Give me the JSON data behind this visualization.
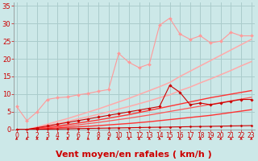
{
  "background_color": "#cce8e8",
  "grid_color": "#aacccc",
  "xlabel": "Vent moyen/en rafales ( km/h )",
  "xlabel_color": "#cc0000",
  "xlabel_fontsize": 8,
  "ylabel_ticks": [
    0,
    5,
    10,
    15,
    20,
    25,
    30,
    35
  ],
  "xticks": [
    0,
    1,
    2,
    3,
    4,
    5,
    6,
    7,
    8,
    9,
    10,
    11,
    12,
    13,
    14,
    15,
    16,
    17,
    18,
    19,
    20,
    21,
    22,
    23
  ],
  "xlim": [
    -0.3,
    23.3
  ],
  "ylim": [
    0,
    36
  ],
  "lines": [
    {
      "x": [
        0,
        1,
        2,
        3,
        4,
        5,
        6,
        7,
        8,
        9,
        10,
        11,
        12,
        13,
        14,
        15,
        16,
        17,
        18,
        19,
        20,
        21,
        22,
        23
      ],
      "y": [
        0.0,
        0.0,
        0.5,
        1.1,
        1.7,
        2.3,
        3.0,
        3.6,
        4.3,
        5.0,
        5.8,
        6.5,
        7.3,
        8.1,
        9.0,
        9.8,
        11.0,
        12.0,
        13.2,
        14.3,
        15.5,
        16.7,
        18.0,
        19.2
      ],
      "color": "#ffaaaa",
      "lw": 1.1,
      "marker": null
    },
    {
      "x": [
        0,
        1,
        2,
        3,
        4,
        5,
        6,
        7,
        8,
        9,
        10,
        11,
        12,
        13,
        14,
        15,
        16,
        17,
        18,
        19,
        20,
        21,
        22,
        23
      ],
      "y": [
        0.0,
        0.0,
        0.7,
        1.5,
        2.3,
        3.1,
        4.0,
        4.9,
        5.8,
        6.8,
        7.8,
        8.8,
        9.9,
        11.0,
        12.1,
        13.3,
        15.0,
        16.5,
        18.0,
        19.5,
        21.0,
        22.5,
        24.0,
        25.5
      ],
      "color": "#ffaaaa",
      "lw": 1.1,
      "marker": null
    },
    {
      "x": [
        0,
        1,
        2,
        3,
        4,
        5,
        6,
        7,
        8,
        9,
        10,
        11,
        12,
        13,
        14,
        15,
        16,
        17,
        18,
        19,
        20,
        21,
        22,
        23
      ],
      "y": [
        6.5,
        2.5,
        5.0,
        8.5,
        9.0,
        9.2,
        9.8,
        10.2,
        10.8,
        11.3,
        21.5,
        19.0,
        17.5,
        18.5,
        29.5,
        31.5,
        27.0,
        25.5,
        26.5,
        24.5,
        25.0,
        27.5,
        26.5,
        26.5
      ],
      "color": "#ff9999",
      "lw": 0.8,
      "marker": "D",
      "ms": 2.0
    },
    {
      "x": [
        0,
        1,
        2,
        3,
        4,
        5,
        6,
        7,
        8,
        9,
        10,
        11,
        12,
        13,
        14,
        15,
        16,
        17,
        18,
        19,
        20,
        21,
        22,
        23
      ],
      "y": [
        0.0,
        0.0,
        0.15,
        0.3,
        0.45,
        0.6,
        0.75,
        0.9,
        1.1,
        1.3,
        1.5,
        1.7,
        1.95,
        2.2,
        2.5,
        2.8,
        3.1,
        3.4,
        3.7,
        4.0,
        4.4,
        4.8,
        5.2,
        5.6
      ],
      "color": "#ff3333",
      "lw": 1.0,
      "marker": null
    },
    {
      "x": [
        0,
        1,
        2,
        3,
        4,
        5,
        6,
        7,
        8,
        9,
        10,
        11,
        12,
        13,
        14,
        15,
        16,
        17,
        18,
        19,
        20,
        21,
        22,
        23
      ],
      "y": [
        0.0,
        0.0,
        0.3,
        0.65,
        1.0,
        1.4,
        1.8,
        2.25,
        2.7,
        3.2,
        3.7,
        4.2,
        4.8,
        5.4,
        6.0,
        6.6,
        7.2,
        7.8,
        8.4,
        9.0,
        9.5,
        10.0,
        10.5,
        11.0
      ],
      "color": "#ff3333",
      "lw": 1.0,
      "marker": null
    },
    {
      "x": [
        0,
        1,
        2,
        3,
        4,
        5,
        6,
        7,
        8,
        9,
        10,
        11,
        12,
        13,
        14,
        15,
        16,
        17,
        18,
        19,
        20,
        21,
        22,
        23
      ],
      "y": [
        0.0,
        0.0,
        0.05,
        0.1,
        0.15,
        0.2,
        0.25,
        0.3,
        0.35,
        0.4,
        0.45,
        0.5,
        0.55,
        0.6,
        0.65,
        0.7,
        0.75,
        0.8,
        0.85,
        0.9,
        0.95,
        1.0,
        1.05,
        1.1
      ],
      "color": "#cc0000",
      "lw": 0.8,
      "marker": "D",
      "ms": 1.5
    },
    {
      "x": [
        0,
        1,
        2,
        3,
        4,
        5,
        6,
        7,
        8,
        9,
        10,
        11,
        12,
        13,
        14,
        15,
        16,
        17,
        18,
        19,
        20,
        21,
        22,
        23
      ],
      "y": [
        0.0,
        0.0,
        0.5,
        1.0,
        1.5,
        2.0,
        2.5,
        3.0,
        3.5,
        4.0,
        4.5,
        5.0,
        5.5,
        6.0,
        6.5,
        12.5,
        10.5,
        7.0,
        7.5,
        7.0,
        7.5,
        8.0,
        8.5,
        8.5
      ],
      "color": "#cc0000",
      "lw": 0.8,
      "marker": "D",
      "ms": 1.8
    },
    {
      "x": [
        0,
        1,
        2,
        3,
        4,
        5,
        6,
        7,
        8,
        9,
        10,
        11,
        12,
        13,
        14,
        15,
        16,
        17,
        18,
        19,
        20,
        21,
        22,
        23
      ],
      "y": [
        0.0,
        0.0,
        0.2,
        0.45,
        0.7,
        1.0,
        1.3,
        1.65,
        2.0,
        2.4,
        2.8,
        3.2,
        3.65,
        4.1,
        4.6,
        5.1,
        5.6,
        6.1,
        6.6,
        7.1,
        7.6,
        8.1,
        8.6,
        9.1
      ],
      "color": "#ff5555",
      "lw": 0.9,
      "marker": null
    }
  ],
  "arrow_color": "#cc0000",
  "tick_color": "#cc0000",
  "tick_fontsize": 5.5
}
